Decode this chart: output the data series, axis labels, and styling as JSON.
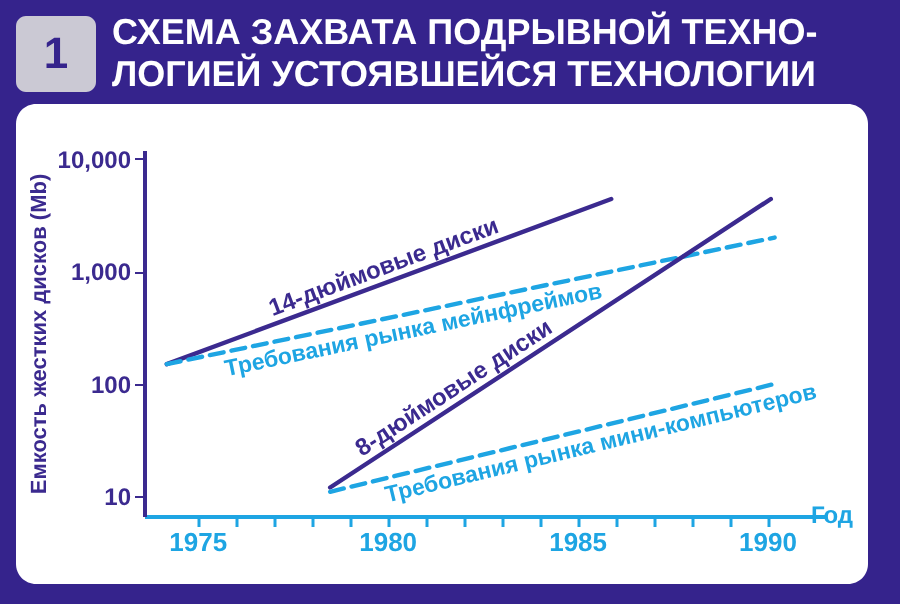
{
  "chart_data": {
    "type": "line",
    "title": [
      "СХЕМА ЗАХВАТА ПОДРЫВНОЙ ТЕХНО-",
      "ЛОГИЕЙ УСТОЯВШЕЙСЯ ТЕХНОЛОГИИ"
    ],
    "annotations": [
      "1"
    ],
    "xlabel": "Год",
    "ylabel": "Емкость жестких дисков (Mb)",
    "log": "y",
    "grid": false,
    "legend": false,
    "marker": "none",
    "xlim": [
      1973.6,
      1991.5
    ],
    "ylim": [
      6.7,
      12000
    ],
    "xticks": [
      1975,
      {
        "value": 1976,
        "label": null
      },
      {
        "value": 1977,
        "label": null
      },
      {
        "value": 1978,
        "label": null
      },
      {
        "value": 1979,
        "label": null
      },
      1980,
      {
        "value": 1981,
        "label": null
      },
      {
        "value": 1982,
        "label": null
      },
      {
        "value": 1983,
        "label": null
      },
      {
        "value": 1984,
        "label": null
      },
      1985,
      {
        "value": 1986,
        "label": null
      },
      {
        "value": 1987,
        "label": null
      },
      {
        "value": 1988,
        "label": null
      },
      {
        "value": 1989,
        "label": null
      },
      1990
    ],
    "yticks": [
      10,
      100,
      {
        "value": 1000,
        "label": "1,000"
      },
      {
        "value": 10000,
        "label": "10,000"
      }
    ],
    "series": [
      {
        "name": "14-дюймовые диски",
        "color": "#3b2a8f",
        "line_style": "solid",
        "x": [
          1974.2,
          1985.9
        ],
        "values": [
          150,
          4400
        ]
      },
      {
        "name": "Требования рынка мейнфреймов",
        "color": "#1ea5e3",
        "line_style": "dashed",
        "x": [
          1974.2,
          1990.2
        ],
        "values": [
          150,
          2000
        ]
      },
      {
        "name": "8-дюймовые диски",
        "color": "#3b2a8f",
        "line_style": "solid",
        "x": [
          1978.5,
          1990.1
        ],
        "values": [
          12,
          4400
        ]
      },
      {
        "name": "Требования рынка мини-компьютеров",
        "color": "#1ea5e3",
        "line_style": "dashed",
        "x": [
          1978.5,
          1990.2
        ],
        "values": [
          11,
          100
        ]
      }
    ]
  }
}
